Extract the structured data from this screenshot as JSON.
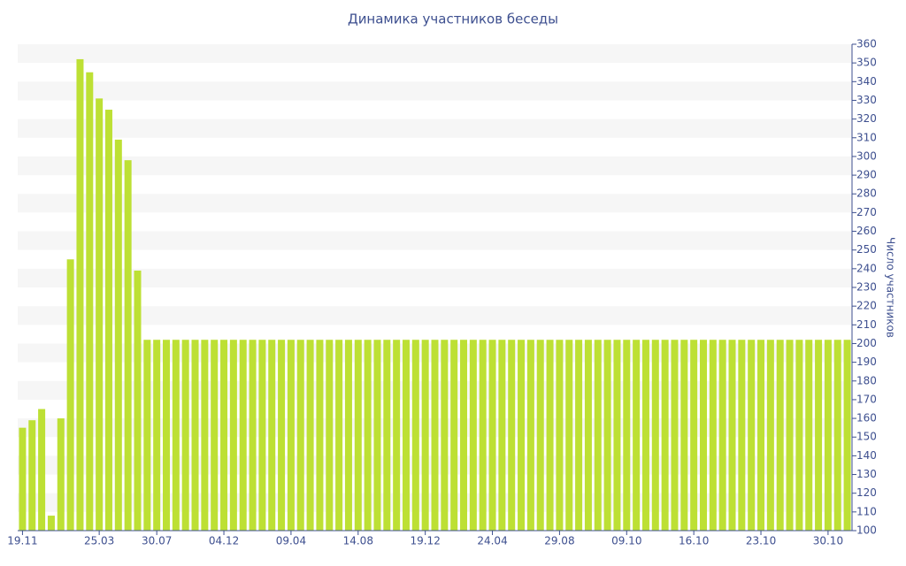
{
  "chart_data": {
    "type": "bar",
    "title": "Динамика участников беседы",
    "y_axis_label": "Число участников",
    "color": "#bde034",
    "categories": [
      "19.11",
      null,
      null,
      null,
      null,
      null,
      null,
      null,
      "25.03",
      null,
      null,
      null,
      null,
      null,
      "30.07",
      null,
      null,
      null,
      null,
      null,
      null,
      "04.12",
      null,
      null,
      null,
      null,
      null,
      null,
      "09.04",
      null,
      null,
      null,
      null,
      null,
      null,
      "14.08",
      null,
      null,
      null,
      null,
      null,
      null,
      "19.12",
      null,
      null,
      null,
      null,
      null,
      null,
      "24.04",
      null,
      null,
      null,
      null,
      null,
      null,
      "29.08",
      null,
      null,
      null,
      null,
      null,
      null,
      "09.10",
      null,
      null,
      null,
      null,
      null,
      null,
      "16.10",
      null,
      null,
      null,
      null,
      null,
      null,
      "23.10",
      null,
      null,
      null,
      null,
      null,
      null,
      "30.10",
      null,
      null
    ],
    "values": [
      155,
      159,
      165,
      108,
      160,
      245,
      352,
      345,
      331,
      325,
      309,
      298,
      239,
      202,
      202,
      202,
      202,
      202,
      202,
      202,
      202,
      202,
      202,
      202,
      202,
      202,
      202,
      202,
      202,
      202,
      202,
      202,
      202,
      202,
      202,
      202,
      202,
      202,
      202,
      202,
      202,
      202,
      202,
      202,
      202,
      202,
      202,
      202,
      202,
      202,
      202,
      202,
      202,
      202,
      202,
      202,
      202,
      202,
      202,
      202,
      202,
      202,
      202,
      202,
      202,
      202,
      202,
      202,
      202,
      202,
      202,
      202,
      202,
      202,
      202,
      202,
      202,
      202,
      202,
      202,
      202,
      202,
      202,
      202,
      202,
      202,
      202
    ],
    "ylim": [
      100,
      360
    ],
    "yticks": [
      100,
      110,
      120,
      130,
      140,
      150,
      160,
      170,
      180,
      190,
      200,
      210,
      220,
      230,
      240,
      250,
      260,
      270,
      280,
      290,
      300,
      310,
      320,
      330,
      340,
      350,
      360
    ],
    "y_axis_side": "right",
    "banded_grid": true
  }
}
